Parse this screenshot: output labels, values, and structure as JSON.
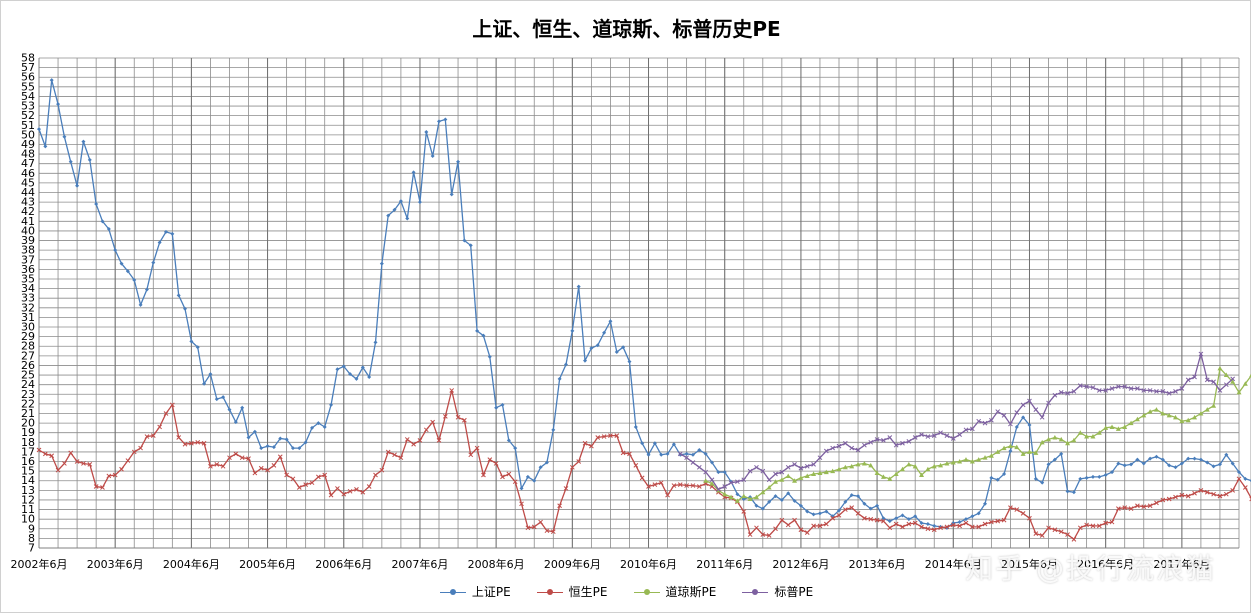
{
  "page": {
    "title": "上证、恒生、道琼斯、标普历史PE",
    "watermark": "知乎 @投行流浪猫"
  },
  "colors": {
    "shanghai": "#4a7ebb",
    "hangseng": "#be4b48",
    "dow": "#98b954",
    "sp500": "#7d60a0",
    "grid": "#8c8c8c"
  },
  "chart_data": {
    "type": "line",
    "title": "上证、恒生、道琼斯、标普历史PE",
    "ylim": [
      7,
      58
    ],
    "yticks": [
      7,
      8,
      9,
      10,
      11,
      12,
      13,
      14,
      15,
      16,
      17,
      18,
      19,
      20,
      21,
      22,
      23,
      24,
      25,
      26,
      27,
      28,
      29,
      30,
      31,
      32,
      33,
      34,
      35,
      36,
      37,
      38,
      39,
      40,
      41,
      42,
      43,
      44,
      45,
      46,
      47,
      48,
      49,
      50,
      51,
      52,
      53,
      54,
      55,
      56,
      57,
      58
    ],
    "xlim": [
      "2002-06",
      "2018-03"
    ],
    "xticks": [
      "2002年6月",
      "2003年6月",
      "2004年6月",
      "2005年6月",
      "2006年6月",
      "2007年6月",
      "2008年6月",
      "2009年6月",
      "2010年6月",
      "2011年6月",
      "2012年6月",
      "2013年6月",
      "2014年6月",
      "2015年6月",
      "2016年6月",
      "2017年6月"
    ],
    "grid": true,
    "legend_position": "bottom",
    "series": [
      {
        "name": "上证PE",
        "key": "shanghai",
        "start": "2002-06",
        "values": [
          50.6,
          48.8,
          55.7,
          53.2,
          49.8,
          47.2,
          44.7,
          49.3,
          47.4,
          42.8,
          41.0,
          40.2,
          38.0,
          36.6,
          35.8,
          34.9,
          32.3,
          33.9,
          36.7,
          38.8,
          39.9,
          39.7,
          33.3,
          31.9,
          28.5,
          27.9,
          24.1,
          25.1,
          22.5,
          22.7,
          21.4,
          20.1,
          21.6,
          18.5,
          19.1,
          17.4,
          17.6,
          17.5,
          18.4,
          18.3,
          17.4,
          17.4,
          18.0,
          19.5,
          20.0,
          19.6,
          21.9,
          25.6,
          25.9,
          25.1,
          24.6,
          25.8,
          24.8,
          28.4,
          36.6,
          41.6,
          42.2,
          43.1,
          41.3,
          46.1,
          43.0,
          50.3,
          47.8,
          51.4,
          51.6,
          43.8,
          47.2,
          39.0,
          38.5,
          29.6,
          29.1,
          26.9,
          21.6,
          21.9,
          18.2,
          17.4,
          13.2,
          14.4,
          14.0,
          15.4,
          15.9,
          19.3,
          24.6,
          26.1,
          29.6,
          34.2,
          26.5,
          27.8,
          28.1,
          29.4,
          30.6,
          27.4,
          27.9,
          26.4,
          19.6,
          17.9,
          16.7,
          17.9,
          16.7,
          16.8,
          17.8,
          16.7,
          16.8,
          16.7,
          17.2,
          16.8,
          15.9,
          14.9,
          14.9,
          13.9,
          12.6,
          12.1,
          12.3,
          11.4,
          11.1,
          11.8,
          12.4,
          12.0,
          12.7,
          11.9,
          11.4,
          10.8,
          10.5,
          10.6,
          10.8,
          10.3,
          10.9,
          11.8,
          12.5,
          12.4,
          11.6,
          11.1,
          11.4,
          10.1,
          9.8,
          10.1,
          10.4,
          10.0,
          10.3,
          9.6,
          9.5,
          9.3,
          9.2,
          9.1,
          9.6,
          9.7,
          10.0,
          10.3,
          10.6,
          11.6,
          14.3,
          14.1,
          14.7,
          17.1,
          19.6,
          20.6,
          19.8,
          14.2,
          13.8,
          15.7,
          16.2,
          16.8,
          12.9,
          12.8,
          14.2,
          14.3,
          14.4,
          14.4,
          14.6,
          14.9,
          15.8,
          15.6,
          15.7,
          16.2,
          15.8,
          16.3,
          16.5,
          16.2,
          15.6,
          15.4,
          15.8,
          16.3,
          16.3,
          16.2,
          15.9,
          15.5,
          15.7,
          16.7,
          15.8,
          14.9,
          14.2,
          14.0,
          13.9
        ]
      },
      {
        "name": "恒生PE",
        "key": "hangseng",
        "start": "2002-06",
        "values": [
          17.2,
          16.8,
          16.6,
          15.1,
          15.8,
          16.9,
          16.0,
          15.8,
          15.7,
          13.4,
          13.3,
          14.5,
          14.6,
          15.2,
          16.1,
          17.0,
          17.4,
          18.6,
          18.7,
          19.6,
          21.0,
          21.9,
          18.5,
          17.8,
          17.9,
          18.0,
          17.9,
          15.5,
          15.7,
          15.5,
          16.4,
          16.8,
          16.4,
          16.3,
          14.8,
          15.3,
          15.1,
          15.6,
          16.5,
          14.6,
          14.2,
          13.3,
          13.6,
          13.8,
          14.4,
          14.6,
          12.5,
          13.2,
          12.6,
          12.9,
          13.1,
          12.8,
          13.4,
          14.6,
          15.1,
          17.0,
          16.7,
          16.4,
          18.3,
          17.8,
          18.2,
          19.3,
          20.1,
          18.2,
          20.7,
          23.4,
          20.6,
          20.3,
          16.7,
          17.4,
          14.6,
          16.2,
          15.8,
          14.4,
          14.7,
          13.9,
          11.6,
          9.1,
          9.2,
          9.7,
          8.8,
          8.7,
          11.4,
          13.2,
          15.4,
          16.0,
          17.9,
          17.6,
          18.5,
          18.6,
          18.7,
          18.7,
          16.9,
          16.8,
          15.6,
          14.3,
          13.4,
          13.6,
          13.8,
          12.5,
          13.5,
          13.6,
          13.5,
          13.5,
          13.4,
          13.7,
          13.4,
          12.8,
          12.3,
          12.2,
          11.8,
          10.8,
          8.4,
          9.1,
          8.4,
          8.3,
          9.0,
          9.9,
          9.4,
          9.9,
          8.9,
          8.6,
          9.3,
          9.3,
          9.5,
          10.1,
          10.4,
          11.0,
          11.2,
          10.6,
          10.1,
          10.0,
          9.9,
          9.8,
          9.1,
          9.5,
          9.2,
          9.5,
          9.6,
          9.2,
          9.0,
          8.9,
          9.1,
          9.2,
          9.4,
          9.3,
          9.6,
          9.2,
          9.2,
          9.5,
          9.7,
          9.8,
          9.9,
          11.2,
          11.0,
          10.6,
          10.1,
          8.5,
          8.3,
          9.1,
          8.9,
          8.7,
          8.4,
          7.9,
          9.1,
          9.4,
          9.3,
          9.3,
          9.6,
          9.7,
          11.1,
          11.2,
          11.1,
          11.4,
          11.3,
          11.4,
          11.7,
          12.0,
          12.1,
          12.3,
          12.5,
          12.4,
          12.7,
          13.0,
          12.8,
          12.6,
          12.4,
          12.6,
          13.0,
          14.2,
          13.3,
          12.1,
          11.7,
          11.7,
          11.8
        ]
      },
      {
        "name": "道琼斯PE",
        "key": "dow",
        "start": "2011-03",
        "values": [
          14.0,
          13.7,
          13.0,
          12.6,
          12.3,
          11.9,
          12.4,
          12.1,
          12.3,
          12.8,
          13.3,
          13.9,
          14.1,
          14.5,
          14.0,
          14.3,
          14.5,
          14.7,
          14.8,
          14.9,
          15.0,
          15.2,
          15.4,
          15.5,
          15.7,
          15.8,
          15.6,
          14.8,
          14.4,
          14.2,
          14.7,
          15.2,
          15.7,
          15.5,
          14.6,
          15.2,
          15.5,
          15.6,
          15.8,
          15.9,
          16.0,
          16.2,
          16.0,
          16.2,
          16.4,
          16.6,
          17.0,
          17.4,
          17.6,
          17.5,
          16.8,
          17.0,
          16.9,
          18.0,
          18.3,
          18.5,
          18.3,
          17.9,
          18.2,
          19.0,
          18.6,
          18.6,
          19.0,
          19.5,
          19.6,
          19.4,
          19.6,
          20.0,
          20.4,
          20.8,
          21.2,
          21.4,
          21.0,
          20.8,
          20.6,
          20.2,
          20.3,
          20.6,
          21.0,
          21.4,
          21.8,
          25.7,
          25.0,
          24.3,
          23.2,
          24.1,
          25.0
        ]
      },
      {
        "name": "标普PE",
        "key": "sp500",
        "start": "2010-11",
        "values": [
          16.8,
          16.4,
          15.9,
          15.4,
          14.9,
          14.1,
          13.1,
          13.4,
          13.8,
          13.9,
          14.1,
          15.0,
          15.4,
          15.0,
          14.1,
          14.7,
          14.9,
          15.4,
          15.7,
          15.3,
          15.5,
          15.7,
          16.4,
          17.1,
          17.4,
          17.6,
          17.9,
          17.4,
          17.2,
          17.7,
          18.0,
          18.3,
          18.2,
          18.5,
          17.7,
          17.9,
          18.1,
          18.5,
          18.8,
          18.6,
          18.7,
          19.0,
          18.7,
          18.4,
          18.8,
          19.3,
          19.4,
          20.2,
          20.0,
          20.3,
          21.2,
          20.8,
          19.9,
          21.1,
          21.9,
          22.3,
          21.4,
          20.6,
          22.1,
          22.9,
          23.2,
          23.1,
          23.3,
          23.9,
          23.8,
          23.7,
          23.4,
          23.4,
          23.6,
          23.8,
          23.8,
          23.6,
          23.6,
          23.4,
          23.4,
          23.3,
          23.3,
          23.1,
          23.3,
          23.6,
          24.5,
          24.8,
          27.2,
          24.5,
          24.3,
          23.4,
          24.0,
          24.6
        ]
      }
    ]
  }
}
